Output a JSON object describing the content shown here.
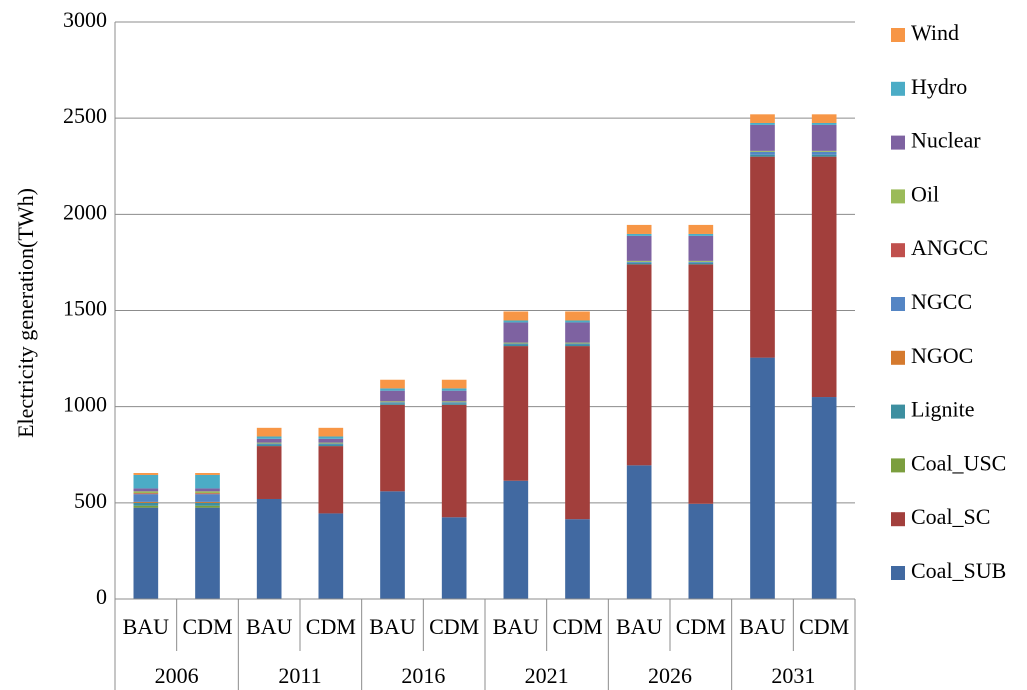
{
  "chart_data": {
    "type": "bar",
    "stacked": true,
    "ylabel": "Electricity generation(TWh)",
    "ylim": [
      0,
      3000
    ],
    "yticks": [
      0,
      500,
      1000,
      1500,
      2000,
      2500,
      3000
    ],
    "ytick_labels": [
      "0",
      "500",
      "1000",
      "1500",
      "2000",
      "2500",
      "3000"
    ],
    "grid": true,
    "legend_position": "right",
    "groups": [
      {
        "label": "2006",
        "categories": [
          "BAU",
          "CDM"
        ]
      },
      {
        "label": "2011",
        "categories": [
          "BAU",
          "CDM"
        ]
      },
      {
        "label": "2016",
        "categories": [
          "BAU",
          "CDM"
        ]
      },
      {
        "label": "2021",
        "categories": [
          "BAU",
          "CDM"
        ]
      },
      {
        "label": "2026",
        "categories": [
          "BAU",
          "CDM"
        ]
      },
      {
        "label": "2031",
        "categories": [
          "BAU",
          "CDM"
        ]
      }
    ],
    "categories": [
      "BAU",
      "CDM",
      "BAU",
      "CDM",
      "BAU",
      "CDM",
      "BAU",
      "CDM",
      "BAU",
      "CDM",
      "BAU",
      "CDM"
    ],
    "series": [
      {
        "name": "Coal_SUB",
        "color": "#4169A1",
        "values": [
          475,
          475,
          520,
          445,
          560,
          425,
          615,
          415,
          695,
          495,
          1255,
          1050
        ]
      },
      {
        "name": "Coal_SC",
        "color": "#A23F3C",
        "values": [
          0,
          0,
          275,
          350,
          450,
          585,
          700,
          900,
          1045,
          1245,
          1045,
          1250
        ]
      },
      {
        "name": "Coal_USC",
        "color": "#7B9E3E",
        "values": [
          10,
          10,
          0,
          0,
          0,
          0,
          0,
          0,
          0,
          0,
          0,
          0
        ]
      },
      {
        "name": "Lignite",
        "color": "#3D8FA0",
        "values": [
          15,
          15,
          8,
          8,
          8,
          8,
          8,
          8,
          8,
          8,
          10,
          10
        ]
      },
      {
        "name": "NGOC",
        "color": "#D57A2E",
        "values": [
          5,
          5,
          0,
          0,
          0,
          0,
          0,
          0,
          0,
          0,
          0,
          0
        ]
      },
      {
        "name": "NGCC",
        "color": "#5485C4",
        "values": [
          40,
          40,
          5,
          5,
          5,
          5,
          5,
          5,
          5,
          5,
          15,
          15
        ]
      },
      {
        "name": "ANGCC",
        "color": "#C0504D",
        "values": [
          5,
          5,
          0,
          0,
          0,
          0,
          0,
          0,
          0,
          0,
          0,
          0
        ]
      },
      {
        "name": "Oil",
        "color": "#9BBB59",
        "values": [
          10,
          10,
          5,
          5,
          5,
          5,
          5,
          5,
          5,
          5,
          5,
          5
        ]
      },
      {
        "name": "Nuclear",
        "color": "#7E62A1",
        "values": [
          15,
          15,
          20,
          20,
          55,
          55,
          105,
          105,
          130,
          130,
          135,
          135
        ]
      },
      {
        "name": "Hydro",
        "color": "#4BACC6",
        "values": [
          70,
          70,
          12,
          12,
          12,
          12,
          10,
          10,
          10,
          10,
          10,
          10
        ]
      },
      {
        "name": "Wind",
        "color": "#F79646",
        "values": [
          10,
          10,
          45,
          45,
          45,
          45,
          47,
          47,
          47,
          47,
          45,
          45
        ]
      }
    ]
  }
}
